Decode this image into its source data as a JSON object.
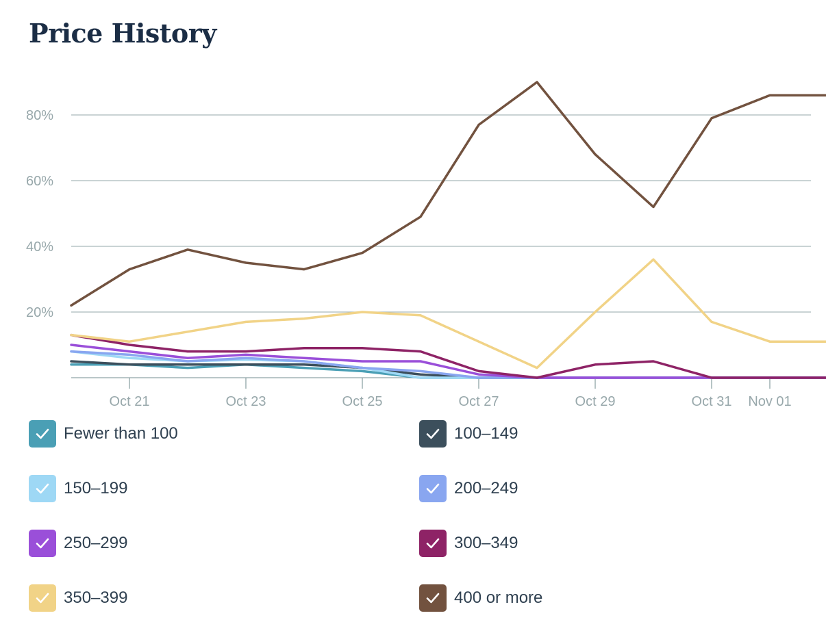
{
  "title": "Price History",
  "chart_data": {
    "type": "line",
    "title": "Price History",
    "xlabel": "",
    "ylabel": "",
    "x": [
      "Oct 20",
      "Oct 21",
      "Oct 22",
      "Oct 23",
      "Oct 24",
      "Oct 25",
      "Oct 26",
      "Oct 27",
      "Oct 28",
      "Oct 29",
      "Oct 30",
      "Oct 31",
      "Nov 01",
      "Nov 02"
    ],
    "x_tick_labels": [
      "Oct 21",
      "Oct 23",
      "Oct 25",
      "Oct 27",
      "Oct 29",
      "Oct 31",
      "Nov 01"
    ],
    "y_tick_values": [
      20,
      40,
      60,
      80
    ],
    "y_tick_labels": [
      "20%",
      "40%",
      "60%",
      "80%"
    ],
    "ylim": [
      0,
      90
    ],
    "grid": true,
    "legend_position": "bottom",
    "series": [
      {
        "name": "Fewer than 100",
        "color": "#4a9fb5",
        "values": [
          4,
          4,
          3,
          4,
          3,
          2,
          0,
          0,
          0,
          0,
          0,
          0,
          0,
          0
        ]
      },
      {
        "name": "100–149",
        "color": "#3c4f5c",
        "values": [
          5,
          4,
          4,
          4,
          4,
          3,
          1,
          0,
          0,
          0,
          0,
          0,
          0,
          0
        ]
      },
      {
        "name": "150–199",
        "color": "#9ed8f5",
        "values": [
          8,
          6,
          5,
          5.5,
          5,
          3,
          0,
          0,
          0,
          0,
          0,
          0,
          0,
          0
        ]
      },
      {
        "name": "200–249",
        "color": "#89a6f0",
        "values": [
          8,
          7,
          5,
          6,
          5,
          3,
          2,
          0,
          0,
          0,
          0,
          0,
          0,
          0
        ]
      },
      {
        "name": "250–299",
        "color": "#9a4fd9",
        "values": [
          10,
          8,
          6,
          7,
          6,
          5,
          5,
          1,
          0,
          0,
          0,
          0,
          0,
          0
        ]
      },
      {
        "name": "300–349",
        "color": "#8e2366",
        "values": [
          13,
          10,
          8,
          8,
          9,
          9,
          8,
          2,
          0,
          4,
          5,
          0,
          0,
          0
        ]
      },
      {
        "name": "350–399",
        "color": "#f1d387",
        "values": [
          13,
          11,
          14,
          17,
          18,
          20,
          19,
          11,
          3,
          20,
          36,
          17,
          11,
          11
        ]
      },
      {
        "name": "400 or more",
        "color": "#72523f",
        "values": [
          22,
          33,
          39,
          35,
          33,
          38,
          49,
          77,
          90,
          68,
          52,
          79,
          86,
          86
        ]
      }
    ]
  }
}
